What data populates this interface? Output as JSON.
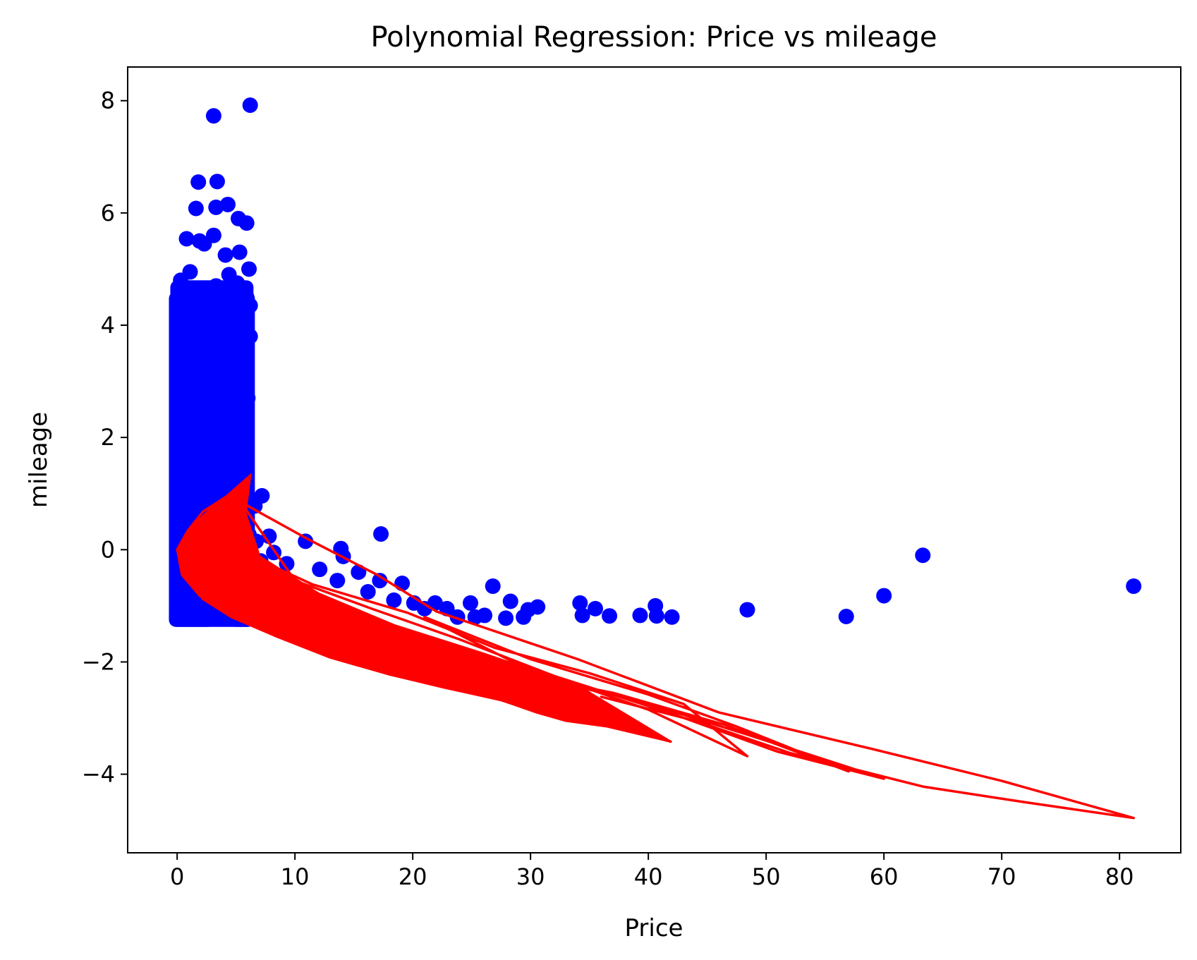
{
  "chart_data": {
    "type": "scatter",
    "title": "Polynomial Regression: Price vs mileage",
    "xlabel": "Price",
    "ylabel": "mileage",
    "xlim": [
      -4.2,
      85.2
    ],
    "ylim": [
      -5.4,
      8.6
    ],
    "xticks": [
      0,
      10,
      20,
      30,
      40,
      50,
      60,
      70,
      80
    ],
    "xtick_labels": [
      "0",
      "10",
      "20",
      "30",
      "40",
      "50",
      "60",
      "70",
      "80"
    ],
    "yticks": [
      -4,
      -2,
      0,
      2,
      4,
      6,
      8
    ],
    "ytick_labels": [
      "−4",
      "−2",
      "0",
      "2",
      "4",
      "6",
      "8"
    ],
    "grid": false,
    "legend": "none",
    "colors": {
      "points": "#0000ff",
      "fit": "#ff0000"
    },
    "series": [
      {
        "kind": "points",
        "points": [
          [
            3.1,
            7.73
          ],
          [
            6.2,
            7.92
          ],
          [
            1.8,
            6.55
          ],
          [
            3.4,
            6.56
          ],
          [
            1.6,
            6.08
          ],
          [
            3.3,
            6.1
          ],
          [
            4.3,
            6.15
          ],
          [
            5.2,
            5.9
          ],
          [
            5.9,
            5.82
          ],
          [
            0.8,
            5.54
          ],
          [
            1.9,
            5.5
          ],
          [
            2.3,
            5.45
          ],
          [
            3.1,
            5.6
          ],
          [
            4.1,
            5.25
          ],
          [
            5.3,
            5.3
          ],
          [
            6.1,
            5.0
          ],
          [
            0.3,
            4.8
          ],
          [
            1.1,
            4.95
          ],
          [
            2.0,
            4.6
          ],
          [
            3.3,
            4.7
          ],
          [
            4.4,
            4.9
          ],
          [
            5.1,
            4.75
          ],
          [
            5.9,
            4.5
          ],
          [
            0.2,
            4.55
          ],
          [
            6.2,
            4.35
          ],
          [
            0.5,
            4.2
          ],
          [
            5.6,
            4.15
          ],
          [
            0.0,
            3.8
          ],
          [
            6.2,
            3.8
          ],
          [
            5.5,
            3.6
          ],
          [
            5.3,
            3.3
          ],
          [
            5.9,
            3.0
          ],
          [
            6.0,
            2.7
          ],
          [
            5.8,
            2.45
          ],
          [
            5.4,
            2.05
          ],
          [
            5.3,
            1.85
          ],
          [
            7.2,
            0.96
          ],
          [
            6.6,
            0.78
          ],
          [
            6.1,
            0.27
          ],
          [
            6.7,
            0.15
          ],
          [
            7.8,
            0.24
          ],
          [
            7.1,
            -0.2
          ],
          [
            8.2,
            -0.05
          ],
          [
            9.3,
            -0.25
          ],
          [
            10.9,
            0.15
          ],
          [
            12.1,
            -0.35
          ],
          [
            13.9,
            0.02
          ],
          [
            14.1,
            -0.12
          ],
          [
            13.6,
            -0.55
          ],
          [
            15.4,
            -0.4
          ],
          [
            16.2,
            -0.75
          ],
          [
            17.3,
            0.28
          ],
          [
            17.2,
            -0.55
          ],
          [
            19.1,
            -0.6
          ],
          [
            18.4,
            -0.9
          ],
          [
            20.1,
            -0.95
          ],
          [
            21.0,
            -1.05
          ],
          [
            21.9,
            -0.95
          ],
          [
            22.9,
            -1.05
          ],
          [
            23.8,
            -1.2
          ],
          [
            24.9,
            -0.95
          ],
          [
            25.3,
            -1.2
          ],
          [
            26.1,
            -1.17
          ],
          [
            26.8,
            -0.65
          ],
          [
            27.9,
            -1.22
          ],
          [
            28.3,
            -0.92
          ],
          [
            29.4,
            -1.2
          ],
          [
            29.8,
            -1.07
          ],
          [
            30.6,
            -1.02
          ],
          [
            34.2,
            -0.95
          ],
          [
            34.4,
            -1.17
          ],
          [
            35.5,
            -1.05
          ],
          [
            36.7,
            -1.18
          ],
          [
            39.3,
            -1.17
          ],
          [
            40.6,
            -1.0
          ],
          [
            40.7,
            -1.18
          ],
          [
            42.0,
            -1.2
          ],
          [
            48.4,
            -1.07
          ],
          [
            56.8,
            -1.19
          ],
          [
            60.0,
            -0.82
          ],
          [
            63.3,
            -0.1
          ],
          [
            81.2,
            -0.65
          ]
        ],
        "dense_band": {
          "x_range": [
            -0.1,
            6.0
          ],
          "y_range": [
            -1.25,
            4.8
          ],
          "x_edge_clusters": [
            [
              -0.1,
              2.6
            ],
            [
              5.0,
              6.0
            ]
          ],
          "bottom_shelf": [
            [
              -0.1,
              12.5
            ],
            [
              -1.28,
              -1.1
            ]
          ]
        }
      },
      {
        "kind": "fit_line",
        "polyline": [
          [
            6.2,
            1.32
          ],
          [
            4.2,
            0.95
          ],
          [
            2.2,
            0.68
          ],
          [
            0.9,
            0.34
          ],
          [
            0.0,
            0.0
          ],
          [
            0.6,
            -0.42
          ],
          [
            2.2,
            -0.88
          ],
          [
            4.6,
            -1.2
          ],
          [
            8.5,
            -1.55
          ],
          [
            13.0,
            -1.92
          ],
          [
            18.0,
            -2.22
          ],
          [
            22.5,
            -2.44
          ],
          [
            27.5,
            -2.68
          ],
          [
            30.5,
            -2.88
          ],
          [
            33.0,
            -3.02
          ],
          [
            36.5,
            -3.12
          ],
          [
            39.5,
            -3.28
          ],
          [
            41.9,
            -3.42
          ],
          [
            33.0,
            -2.55
          ],
          [
            22.0,
            -1.75
          ],
          [
            14.0,
            -1.1
          ],
          [
            9.0,
            -0.55
          ],
          [
            5.6,
            -0.05
          ],
          [
            11.5,
            -0.62
          ],
          [
            19.5,
            -1.12
          ],
          [
            27.0,
            -1.75
          ],
          [
            35.0,
            -2.2
          ],
          [
            43.0,
            -2.75
          ],
          [
            48.4,
            -3.68
          ],
          [
            40.0,
            -2.85
          ],
          [
            29.0,
            -2.05
          ],
          [
            21.0,
            -1.2
          ],
          [
            30.0,
            -1.95
          ],
          [
            40.0,
            -2.58
          ],
          [
            47.5,
            -3.15
          ],
          [
            57.0,
            -3.95
          ],
          [
            46.5,
            -3.12
          ],
          [
            37.0,
            -2.55
          ],
          [
            28.0,
            -2.18
          ],
          [
            38.5,
            -2.65
          ],
          [
            48.5,
            -3.3
          ],
          [
            60.0,
            -4.08
          ],
          [
            51.0,
            -3.6
          ],
          [
            42.0,
            -2.92
          ],
          [
            32.0,
            -2.25
          ],
          [
            24.0,
            -1.6
          ],
          [
            16.5,
            -1.05
          ],
          [
            10.0,
            -0.55
          ],
          [
            5.4,
            0.85
          ],
          [
            11.0,
            0.2
          ],
          [
            17.0,
            -0.45
          ],
          [
            22.0,
            -1.1
          ],
          [
            34.0,
            -1.95
          ],
          [
            46.0,
            -2.9
          ],
          [
            59.0,
            -3.55
          ],
          [
            70.0,
            -4.12
          ],
          [
            81.2,
            -4.78
          ],
          [
            72.0,
            -4.5
          ],
          [
            63.3,
            -4.22
          ],
          [
            52.0,
            -3.62
          ],
          [
            44.0,
            -3.05
          ],
          [
            36.0,
            -2.62
          ]
        ],
        "envelope": [
          [
            6.2,
            1.32
          ],
          [
            4.6,
            0.98
          ],
          [
            2.8,
            0.72
          ],
          [
            1.1,
            0.38
          ],
          [
            0.0,
            0.0
          ],
          [
            0.4,
            -0.45
          ],
          [
            1.9,
            -0.82
          ],
          [
            4.5,
            -1.18
          ],
          [
            8.5,
            -1.55
          ],
          [
            13.0,
            -1.92
          ],
          [
            18.0,
            -2.22
          ],
          [
            22.5,
            -2.45
          ],
          [
            27.5,
            -2.68
          ],
          [
            30.5,
            -2.9
          ],
          [
            33.0,
            -3.05
          ],
          [
            36.5,
            -3.15
          ],
          [
            39.5,
            -3.3
          ],
          [
            41.9,
            -3.42
          ],
          [
            34.0,
            -2.42
          ],
          [
            26.0,
            -1.85
          ],
          [
            18.5,
            -1.35
          ],
          [
            12.0,
            -0.78
          ],
          [
            7.0,
            -0.12
          ],
          [
            5.8,
            0.65
          ]
        ]
      }
    ]
  }
}
